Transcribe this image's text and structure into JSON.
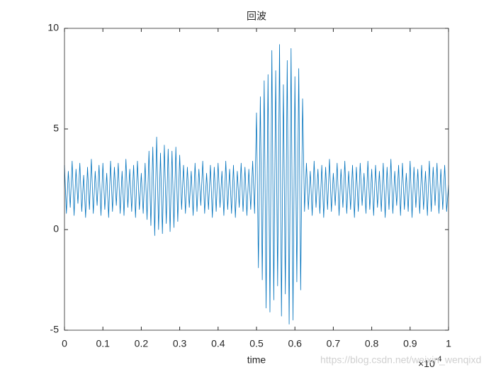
{
  "chart_data": {
    "type": "line",
    "title": "回波",
    "x_label": "time",
    "x_exponent": {
      "base": "×10",
      "power": "-4"
    },
    "watermark": "https://blog.csdn.net/weixin_wenqixd",
    "x": [
      0,
      0.005,
      0.01,
      0.015,
      0.02,
      0.025,
      0.03,
      0.035,
      0.04,
      0.045,
      0.05,
      0.055,
      0.06,
      0.065,
      0.07,
      0.075,
      0.08,
      0.085,
      0.09,
      0.095,
      0.1,
      0.105,
      0.11,
      0.115,
      0.12,
      0.125,
      0.13,
      0.135,
      0.14,
      0.145,
      0.15,
      0.155,
      0.16,
      0.165,
      0.17,
      0.175,
      0.18,
      0.185,
      0.19,
      0.195,
      0.2,
      0.205,
      0.21,
      0.215,
      0.22,
      0.225,
      0.23,
      0.235,
      0.24,
      0.245,
      0.25,
      0.255,
      0.26,
      0.265,
      0.27,
      0.275,
      0.28,
      0.285,
      0.29,
      0.295,
      0.3,
      0.305,
      0.31,
      0.315,
      0.32,
      0.325,
      0.33,
      0.335,
      0.34,
      0.345,
      0.35,
      0.355,
      0.36,
      0.365,
      0.37,
      0.375,
      0.38,
      0.385,
      0.39,
      0.395,
      0.4,
      0.405,
      0.41,
      0.415,
      0.42,
      0.425,
      0.43,
      0.435,
      0.44,
      0.445,
      0.45,
      0.455,
      0.46,
      0.465,
      0.47,
      0.475,
      0.48,
      0.485,
      0.49,
      0.495,
      0.5,
      0.505,
      0.51,
      0.515,
      0.52,
      0.525,
      0.53,
      0.535,
      0.54,
      0.545,
      0.55,
      0.555,
      0.56,
      0.565,
      0.57,
      0.575,
      0.58,
      0.585,
      0.59,
      0.595,
      0.6,
      0.605,
      0.61,
      0.615,
      0.62,
      0.625,
      0.63,
      0.635,
      0.64,
      0.645,
      0.65,
      0.655,
      0.66,
      0.665,
      0.67,
      0.675,
      0.68,
      0.685,
      0.69,
      0.695,
      0.7,
      0.705,
      0.71,
      0.715,
      0.72,
      0.725,
      0.73,
      0.735,
      0.74,
      0.745,
      0.75,
      0.755,
      0.76,
      0.765,
      0.77,
      0.775,
      0.78,
      0.785,
      0.79,
      0.795,
      0.8,
      0.805,
      0.81,
      0.815,
      0.82,
      0.825,
      0.83,
      0.835,
      0.84,
      0.845,
      0.85,
      0.855,
      0.86,
      0.865,
      0.87,
      0.875,
      0.88,
      0.885,
      0.89,
      0.895,
      0.9,
      0.905,
      0.91,
      0.915,
      0.92,
      0.925,
      0.93,
      0.935,
      0.94,
      0.945,
      0.95,
      0.955,
      0.96,
      0.965,
      0.97,
      0.975,
      0.98,
      0.985,
      0.99,
      0.995,
      1
    ],
    "series": [
      {
        "color": "#0072bd",
        "values": [
          3.2,
          0.8,
          2.9,
          1.1,
          3.4,
          0.7,
          3.0,
          1.3,
          3.3,
          0.9,
          2.7,
          0.6,
          3.1,
          1.0,
          3.5,
          0.8,
          2.9,
          1.2,
          3.2,
          0.7,
          3.3,
          1.0,
          2.8,
          0.6,
          3.4,
          0.9,
          3.1,
          1.2,
          3.3,
          0.8,
          2.9,
          0.7,
          3.5,
          1.1,
          3.0,
          0.9,
          3.2,
          0.6,
          3.4,
          1.0,
          2.8,
          0.8,
          3.3,
          0.5,
          3.9,
          0.2,
          4.1,
          -0.3,
          4.6,
          0.0,
          3.8,
          -0.2,
          4.2,
          0.3,
          4.0,
          -0.1,
          3.9,
          0.1,
          4.1,
          0.4,
          3.7,
          1.0,
          3.2,
          0.8,
          3.1,
          1.1,
          2.9,
          0.7,
          3.3,
          0.9,
          3.0,
          1.2,
          3.4,
          0.8,
          2.8,
          1.0,
          3.2,
          0.6,
          3.1,
          0.9,
          3.3,
          1.1,
          2.9,
          0.7,
          3.4,
          1.0,
          3.0,
          0.8,
          3.2,
          0.6,
          2.9,
          1.1,
          3.3,
          0.9,
          3.1,
          0.7,
          3.0,
          1.0,
          3.4,
          0.8,
          5.8,
          -1.9,
          6.6,
          -2.5,
          7.4,
          -3.9,
          7.7,
          -4.1,
          8.9,
          -3.5,
          7.9,
          -2.8,
          9.2,
          -4.3,
          7.2,
          -3.2,
          8.4,
          -4.7,
          9.0,
          -4.5,
          7.6,
          -2.6,
          8.0,
          -3.0,
          6.5,
          0.9,
          3.3,
          1.0,
          2.9,
          0.7,
          3.4,
          1.1,
          3.0,
          0.8,
          3.2,
          0.6,
          3.1,
          1.0,
          3.5,
          0.9,
          2.8,
          1.2,
          3.3,
          0.7,
          3.0,
          1.1,
          3.4,
          0.8,
          2.9,
          1.0,
          3.2,
          0.6,
          3.1,
          0.9,
          3.3,
          1.2,
          2.8,
          0.8,
          3.4,
          1.0,
          3.0,
          0.7,
          3.2,
          1.1,
          2.9,
          0.9,
          3.3,
          0.6,
          3.1,
          1.0,
          3.5,
          0.8,
          2.9,
          1.2,
          3.2,
          0.7,
          3.3,
          1.0,
          2.8,
          0.9,
          3.4,
          0.6,
          3.1,
          1.1,
          3.0,
          0.8,
          3.2,
          1.0,
          2.9,
          0.7,
          3.4,
          0.9,
          3.1,
          1.2,
          3.3,
          0.8,
          3.0,
          1.0,
          3.2,
          0.9,
          2.2
        ]
      }
    ],
    "xlim": [
      0,
      1
    ],
    "xticks": [
      0,
      0.1,
      0.2,
      0.3,
      0.4,
      0.5,
      0.6,
      0.7,
      0.8,
      0.9,
      1
    ],
    "ylim": [
      -5,
      10
    ],
    "yticks": [
      -5,
      0,
      5,
      10
    ]
  }
}
